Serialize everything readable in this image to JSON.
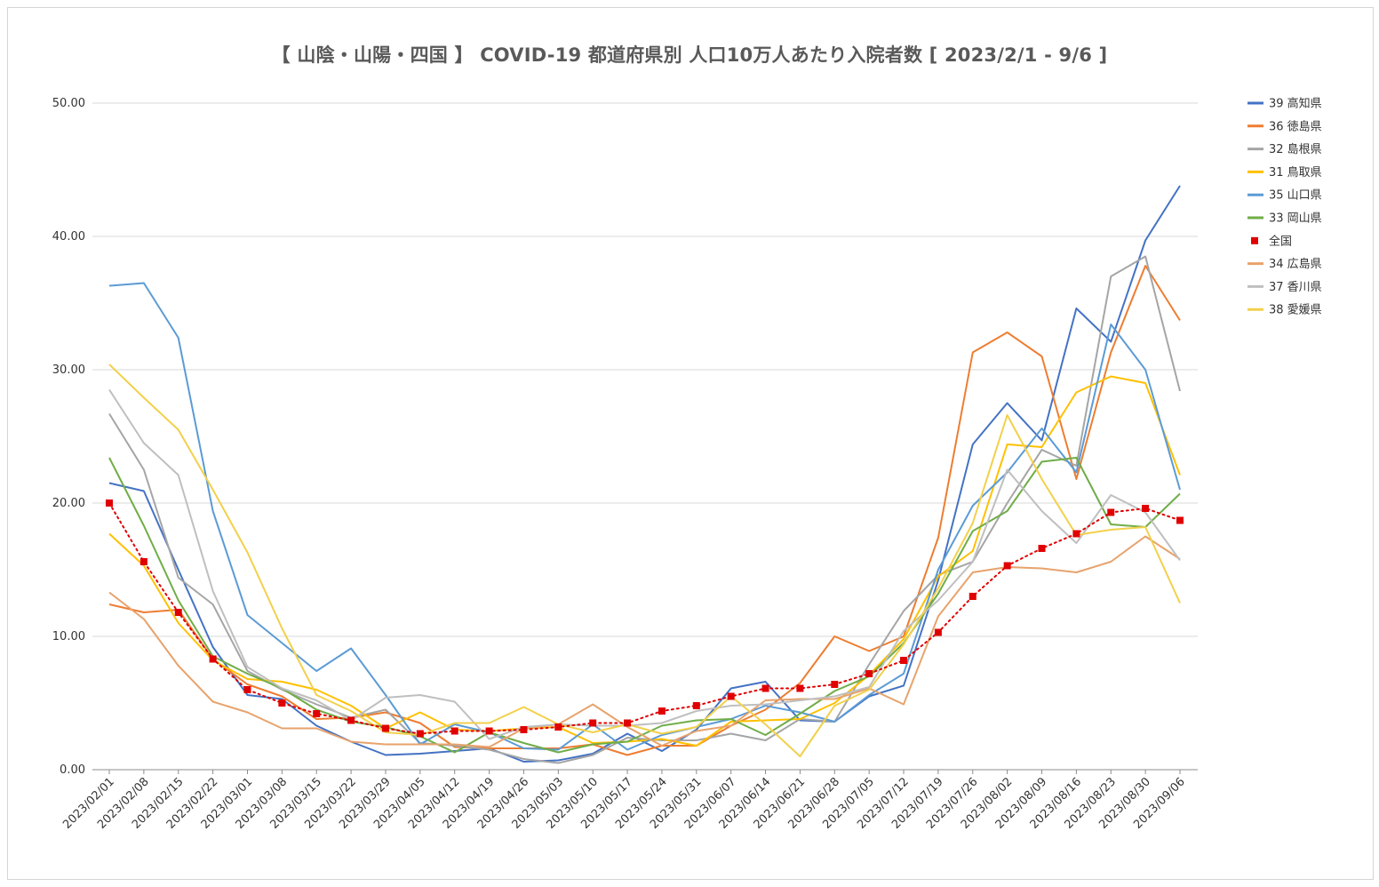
{
  "chart_data": {
    "type": "line",
    "title": "【 山陰・山陽・四国 】 COVID-19 都道府県別 人口10万人あたり入院者数 [ 2023/2/1 - 9/6 ]",
    "xlabel": "",
    "ylabel": "",
    "ylim": [
      0,
      50
    ],
    "yticks": [
      "0.00",
      "10.00",
      "20.00",
      "30.00",
      "40.00",
      "50.00"
    ],
    "grid": true,
    "legend_position": "right",
    "categories": [
      "2023/02/01",
      "2023/02/08",
      "2023/02/15",
      "2023/02/22",
      "2023/03/01",
      "2023/03/08",
      "2023/03/15",
      "2023/03/22",
      "2023/03/29",
      "2023/04/05",
      "2023/04/12",
      "2023/04/19",
      "2023/04/26",
      "2023/05/03",
      "2023/05/10",
      "2023/05/17",
      "2023/05/24",
      "2023/05/31",
      "2023/06/07",
      "2023/06/14",
      "2023/06/21",
      "2023/06/28",
      "2023/07/05",
      "2023/07/12",
      "2023/07/19",
      "2023/07/26",
      "2023/08/02",
      "2023/08/09",
      "2023/08/16",
      "2023/08/23",
      "2023/08/30",
      "2023/09/06"
    ],
    "series": [
      {
        "name": "39 高知県",
        "color": "#4472C4",
        "style": "line",
        "values": [
          21.5,
          20.9,
          15.0,
          9.2,
          5.6,
          5.3,
          3.3,
          2.1,
          1.1,
          1.2,
          1.4,
          1.6,
          0.6,
          0.7,
          1.2,
          2.7,
          1.4,
          3.0,
          6.1,
          6.6,
          3.7,
          3.6,
          5.5,
          6.3,
          14.2,
          24.4,
          27.5,
          24.7,
          34.6,
          32.1,
          39.7,
          43.8
        ]
      },
      {
        "name": "36 徳島県",
        "color": "#ED7D31",
        "style": "line",
        "values": [
          12.4,
          11.8,
          12.0,
          8.3,
          6.4,
          5.5,
          3.8,
          3.9,
          4.3,
          3.5,
          1.7,
          1.6,
          1.6,
          1.6,
          1.9,
          1.1,
          1.8,
          1.8,
          3.3,
          4.5,
          6.5,
          10.0,
          8.9,
          10.0,
          17.4,
          31.3,
          32.8,
          31.0,
          21.8,
          31.3,
          37.8,
          33.7
        ]
      },
      {
        "name": "32 島根県",
        "color": "#A5A5A5",
        "style": "line",
        "values": [
          26.7,
          22.5,
          14.4,
          12.4,
          7.4,
          6.0,
          4.9,
          3.9,
          4.5,
          2.0,
          1.8,
          1.5,
          0.8,
          0.5,
          1.1,
          2.4,
          2.2,
          2.2,
          2.7,
          2.2,
          3.8,
          3.6,
          7.9,
          11.9,
          14.6,
          15.6,
          20.0,
          24.0,
          22.8,
          37.0,
          38.5,
          28.4
        ]
      },
      {
        "name": "31 鳥取県",
        "color": "#FFC000",
        "style": "line",
        "values": [
          17.7,
          15.3,
          11.0,
          8.2,
          6.8,
          6.6,
          6.0,
          4.8,
          3.1,
          4.3,
          3.0,
          2.9,
          3.1,
          3.2,
          2.0,
          2.1,
          2.3,
          1.8,
          3.6,
          3.7,
          3.8,
          5.0,
          7.1,
          9.8,
          14.5,
          16.4,
          24.4,
          24.2,
          28.3,
          29.5,
          29.0,
          22.1
        ]
      },
      {
        "name": "35 山口県",
        "color": "#5B9BD5",
        "style": "line",
        "values": [
          36.3,
          36.5,
          32.4,
          19.4,
          11.6,
          9.5,
          7.4,
          9.1,
          5.6,
          1.9,
          3.4,
          2.8,
          1.6,
          1.5,
          3.4,
          1.5,
          2.6,
          3.2,
          3.8,
          4.8,
          4.3,
          3.6,
          5.6,
          7.2,
          15.0,
          19.8,
          22.3,
          25.6,
          22.3,
          33.4,
          30.0,
          21.0
        ]
      },
      {
        "name": "33 岡山県",
        "color": "#70AD47",
        "style": "line",
        "values": [
          23.4,
          18.3,
          12.7,
          8.5,
          7.2,
          6.1,
          4.5,
          3.6,
          3.2,
          2.5,
          1.3,
          2.8,
          2.0,
          1.3,
          1.9,
          2.1,
          3.3,
          3.7,
          3.8,
          2.6,
          4.2,
          5.9,
          7.0,
          9.5,
          13.2,
          17.9,
          19.4,
          23.1,
          23.4,
          18.4,
          18.2,
          20.7
        ]
      },
      {
        "name": "全国",
        "color": "#E00000",
        "style": "dotted-markers",
        "values": [
          20.0,
          15.6,
          11.8,
          8.3,
          6.0,
          5.0,
          4.2,
          3.7,
          3.1,
          2.7,
          2.9,
          2.9,
          3.0,
          3.2,
          3.5,
          3.5,
          4.4,
          4.8,
          5.5,
          6.1,
          6.1,
          6.4,
          7.2,
          8.2,
          10.3,
          13.0,
          15.3,
          16.6,
          17.7,
          19.3,
          19.6,
          18.7
        ]
      },
      {
        "name": "34 広島県",
        "color": "#E7A36D",
        "style": "line",
        "values": [
          13.3,
          11.3,
          7.8,
          5.1,
          4.3,
          3.1,
          3.1,
          2.1,
          1.9,
          1.9,
          1.9,
          1.7,
          3.1,
          3.4,
          4.9,
          3.2,
          1.8,
          2.9,
          3.3,
          5.2,
          5.3,
          5.3,
          6.1,
          4.9,
          11.5,
          14.8,
          15.2,
          15.1,
          14.8,
          15.6,
          17.5,
          15.8
        ]
      },
      {
        "name": "37 香川県",
        "color": "#BFBFBF",
        "style": "line",
        "values": [
          28.5,
          24.5,
          22.1,
          13.4,
          7.7,
          6.1,
          5.2,
          3.7,
          5.4,
          5.6,
          5.1,
          2.3,
          3.2,
          3.4,
          3.3,
          3.3,
          3.5,
          4.4,
          4.8,
          4.9,
          5.2,
          5.5,
          6.2,
          10.4,
          12.7,
          15.6,
          22.5,
          19.4,
          17.0,
          20.6,
          19.3,
          15.7
        ]
      },
      {
        "name": "38 愛媛県",
        "color": "#F2D04B",
        "style": "line",
        "values": [
          30.4,
          27.9,
          25.5,
          21.0,
          16.3,
          10.6,
          5.6,
          4.4,
          2.8,
          2.6,
          3.5,
          3.5,
          4.7,
          3.4,
          2.8,
          3.4,
          2.7,
          3.2,
          5.5,
          3.4,
          1.0,
          4.8,
          6.0,
          9.4,
          13.6,
          18.5,
          26.6,
          21.8,
          17.6,
          18.0,
          18.2,
          12.5
        ]
      }
    ]
  }
}
